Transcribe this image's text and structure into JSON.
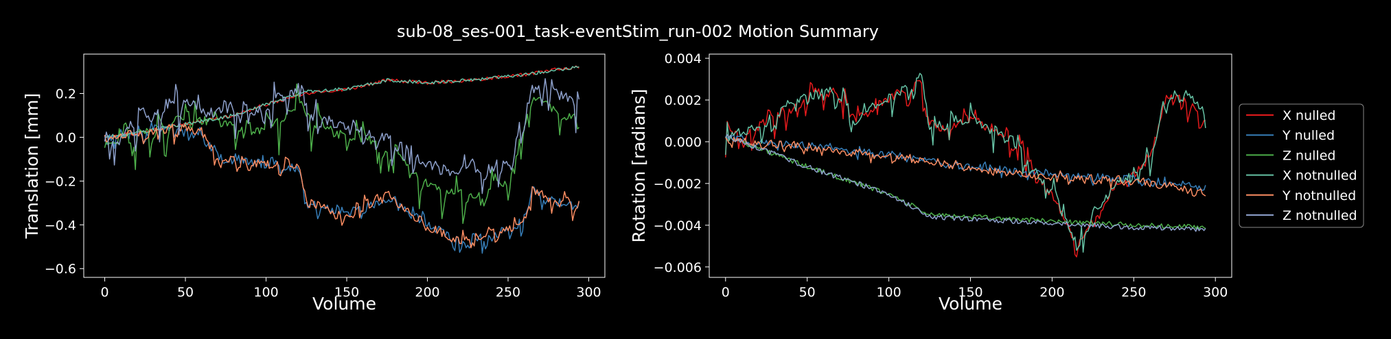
{
  "figure": {
    "title": "sub-08_ses-001_task-eventStim_run-002 Motion Summary"
  },
  "colors": {
    "background": "#000000",
    "axes": "#ffffff",
    "series": [
      "#e41a1c",
      "#377eb8",
      "#4daf4a",
      "#66c2a5",
      "#fc8d62",
      "#8da0cb"
    ]
  },
  "chart_data": [
    {
      "type": "line",
      "xlabel": "Volume",
      "ylabel": "Translation [mm]",
      "xlim": [
        -13,
        310
      ],
      "ylim": [
        -0.64,
        0.38
      ],
      "xticks": [
        0,
        50,
        100,
        150,
        200,
        250,
        300
      ],
      "yticks": [
        -0.6,
        -0.4,
        -0.2,
        0.0,
        0.2
      ],
      "ytick_labels": [
        "−0.6",
        "−0.4",
        "−0.2",
        "0.0",
        "0.2"
      ],
      "n_volumes": 295,
      "series_anchors": [
        {
          "x": [
            0,
            20,
            50,
            80,
            100,
            125,
            150,
            175,
            200,
            225,
            250,
            265,
            280,
            295
          ],
          "y": [
            0,
            0.02,
            0.06,
            0.1,
            0.15,
            0.2,
            0.22,
            0.26,
            0.25,
            0.26,
            0.28,
            0.29,
            0.31,
            0.32
          ],
          "noise": 0.008,
          "spikes": 0
        },
        {
          "x": [
            0,
            20,
            50,
            60,
            70,
            100,
            120,
            125,
            140,
            150,
            175,
            200,
            220,
            240,
            250,
            260,
            265,
            280,
            295
          ],
          "y": [
            0,
            0.02,
            0.05,
            0.03,
            -0.1,
            -0.12,
            -0.14,
            -0.3,
            -0.33,
            -0.35,
            -0.28,
            -0.4,
            -0.48,
            -0.45,
            -0.42,
            -0.38,
            -0.24,
            -0.3,
            -0.3
          ],
          "noise": 0.02,
          "spikes": 0.1
        },
        {
          "x": [
            0,
            20,
            50,
            60,
            80,
            100,
            120,
            125,
            150,
            175,
            200,
            225,
            250,
            265,
            280,
            295
          ],
          "y": [
            -0.03,
            0,
            0.1,
            0.08,
            0.05,
            0.03,
            0.15,
            0.1,
            0.0,
            -0.05,
            -0.2,
            -0.28,
            -0.2,
            0.2,
            0.12,
            0.08
          ],
          "noise": 0.02,
          "spikes": 0.22
        },
        {
          "x": [
            0,
            20,
            50,
            80,
            100,
            125,
            150,
            175,
            200,
            225,
            250,
            265,
            280,
            295
          ],
          "y": [
            0,
            0.02,
            0.06,
            0.1,
            0.15,
            0.21,
            0.22,
            0.26,
            0.25,
            0.26,
            0.28,
            0.29,
            0.31,
            0.32
          ],
          "noise": 0.008,
          "spikes": 0
        },
        {
          "x": [
            0,
            20,
            50,
            60,
            70,
            100,
            120,
            125,
            140,
            150,
            175,
            200,
            220,
            240,
            250,
            260,
            265,
            280,
            295
          ],
          "y": [
            0,
            0.02,
            0.05,
            0.03,
            -0.1,
            -0.12,
            -0.14,
            -0.3,
            -0.33,
            -0.35,
            -0.28,
            -0.4,
            -0.48,
            -0.45,
            -0.42,
            -0.38,
            -0.24,
            -0.3,
            -0.3
          ],
          "noise": 0.02,
          "spikes": 0.1
        },
        {
          "x": [
            0,
            20,
            50,
            60,
            80,
            100,
            120,
            125,
            150,
            175,
            200,
            225,
            250,
            265,
            280,
            295
          ],
          "y": [
            0,
            0.07,
            0.18,
            0.13,
            0.11,
            0.13,
            0.22,
            0.12,
            0.04,
            0.0,
            -0.12,
            -0.18,
            -0.1,
            0.22,
            0.2,
            0.15
          ],
          "noise": 0.025,
          "spikes": 0.2
        }
      ]
    },
    {
      "type": "line",
      "xlabel": "Volume",
      "ylabel": "Rotation [radians]",
      "xlim": [
        -10,
        310
      ],
      "ylim": [
        -0.0065,
        0.0042
      ],
      "xticks": [
        0,
        50,
        100,
        150,
        200,
        250,
        300
      ],
      "yticks": [
        -0.006,
        -0.004,
        -0.002,
        0.0,
        0.002,
        0.004
      ],
      "ytick_labels": [
        "−0.006",
        "−0.004",
        "−0.002",
        "0.000",
        "0.002",
        "0.004"
      ],
      "n_volumes": 295,
      "series_anchors": [
        {
          "x": [
            0,
            20,
            50,
            65,
            80,
            100,
            120,
            125,
            150,
            175,
            200,
            215,
            240,
            260,
            270,
            285,
            295
          ],
          "y": [
            0.0002,
            0.0008,
            0.0022,
            0.0025,
            0.001,
            0.002,
            0.003,
            0.0005,
            0.001,
            0.0,
            -0.0025,
            -0.005,
            -0.002,
            -0.001,
            0.0022,
            0.002,
            0.001
          ],
          "noise": 0.0002,
          "spikes": 0.0016
        },
        {
          "x": [
            0,
            50,
            100,
            150,
            200,
            250,
            295
          ],
          "y": [
            0.0002,
            -0.0002,
            -0.0006,
            -0.0012,
            -0.0016,
            -0.0018,
            -0.0022
          ],
          "noise": 0.00018,
          "spikes": 0.0004
        },
        {
          "x": [
            0,
            50,
            100,
            125,
            150,
            200,
            250,
            295
          ],
          "y": [
            0.0003,
            -0.0012,
            -0.0025,
            -0.0035,
            -0.0036,
            -0.0038,
            -0.004,
            -0.0041
          ],
          "noise": 0.00012,
          "spikes": 0
        },
        {
          "x": [
            0,
            20,
            50,
            65,
            80,
            100,
            120,
            125,
            150,
            175,
            200,
            215,
            240,
            260,
            270,
            285,
            295
          ],
          "y": [
            0.0002,
            0.0008,
            0.0024,
            0.0026,
            0.0011,
            0.0021,
            0.0031,
            0.0006,
            0.0011,
            0.0001,
            -0.0024,
            -0.0049,
            -0.0019,
            -0.0009,
            0.0024,
            0.0022,
            0.0012
          ],
          "noise": 0.0002,
          "spikes": 0.0016
        },
        {
          "x": [
            0,
            50,
            100,
            150,
            200,
            250,
            295
          ],
          "y": [
            0.0001,
            -0.0003,
            -0.0007,
            -0.0013,
            -0.0017,
            -0.0019,
            -0.0024
          ],
          "noise": 0.00018,
          "spikes": 0.0004
        },
        {
          "x": [
            0,
            50,
            100,
            125,
            150,
            200,
            250,
            295
          ],
          "y": [
            0.0003,
            -0.0012,
            -0.0025,
            -0.0036,
            -0.0037,
            -0.0039,
            -0.0041,
            -0.0042
          ],
          "noise": 0.00012,
          "spikes": 0
        }
      ]
    }
  ],
  "legend": {
    "placement": "right",
    "items": [
      "X nulled",
      "Y nulled",
      "Z nulled",
      "X notnulled",
      "Y notnulled",
      "Z notnulled"
    ]
  }
}
